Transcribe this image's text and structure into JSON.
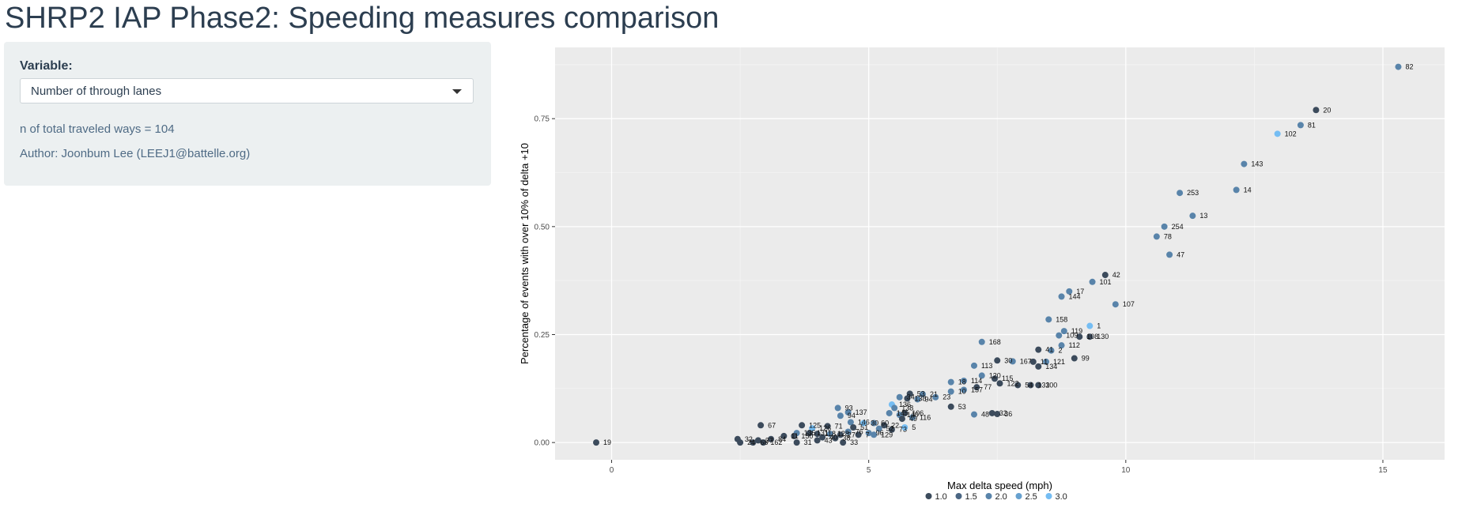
{
  "page_title": "SHRP2 IAP Phase2: Speeding measures comparison",
  "sidebar": {
    "variable_label": "Variable:",
    "variable_value": "Number of through lanes",
    "count_text": "n of total traveled ways = 104",
    "author_text": "Author: Joonbum Lee (LEEJ1@battelle.org)"
  },
  "colors": {
    "1.0": "#3c4b5c",
    "1.5": "#4b6683",
    "2.0": "#5984aa",
    "2.5": "#67a1cf",
    "3.0": "#75bdf3"
  },
  "icons": {
    "dropdown": "caret-down-icon"
  },
  "chart_data": {
    "type": "scatter",
    "xlabel": "Max delta speed (mph)",
    "ylabel": "Percentage of events with over 10% of delta +10",
    "xlim": [
      -1.1,
      16.2
    ],
    "ylim": [
      -0.04,
      0.915
    ],
    "xticks": [
      0,
      5,
      10,
      15
    ],
    "yticks": [
      0.0,
      0.25,
      0.5,
      0.75
    ],
    "ytick_labels": [
      "0.00",
      "0.25",
      "0.50",
      "0.75"
    ],
    "grid": true,
    "legend": {
      "placement": "bottom",
      "values": [
        1.0,
        1.5,
        2.0,
        2.5,
        3.0
      ],
      "labels": [
        "1.0",
        "1.5",
        "2.0",
        "2.5",
        "3.0"
      ]
    },
    "points": [
      {
        "x": 15.3,
        "y": 0.87,
        "label": "82",
        "lanes": 2.0
      },
      {
        "x": 13.7,
        "y": 0.77,
        "label": "20",
        "lanes": 1.0
      },
      {
        "x": 13.4,
        "y": 0.735,
        "label": "81",
        "lanes": 2.0
      },
      {
        "x": 12.95,
        "y": 0.715,
        "label": "102",
        "lanes": 3.0
      },
      {
        "x": 12.3,
        "y": 0.645,
        "label": "143",
        "lanes": 2.0
      },
      {
        "x": 12.15,
        "y": 0.585,
        "label": "14",
        "lanes": 2.0
      },
      {
        "x": 11.05,
        "y": 0.578,
        "label": "253",
        "lanes": 2.0
      },
      {
        "x": 11.3,
        "y": 0.525,
        "label": "13",
        "lanes": 2.0
      },
      {
        "x": 10.75,
        "y": 0.5,
        "label": "254",
        "lanes": 2.0
      },
      {
        "x": 10.6,
        "y": 0.477,
        "label": "78",
        "lanes": 2.0
      },
      {
        "x": 10.85,
        "y": 0.435,
        "label": "47",
        "lanes": 2.0
      },
      {
        "x": 9.6,
        "y": 0.388,
        "label": "42",
        "lanes": 1.0
      },
      {
        "x": 9.35,
        "y": 0.372,
        "label": "101",
        "lanes": 2.0
      },
      {
        "x": 8.9,
        "y": 0.35,
        "label": "17",
        "lanes": 2.0
      },
      {
        "x": 8.75,
        "y": 0.338,
        "label": "144",
        "lanes": 2.0
      },
      {
        "x": 9.8,
        "y": 0.32,
        "label": "107",
        "lanes": 2.0
      },
      {
        "x": 8.5,
        "y": 0.285,
        "label": "158",
        "lanes": 2.0
      },
      {
        "x": 9.3,
        "y": 0.27,
        "label": "1",
        "lanes": 3.0
      },
      {
        "x": 8.8,
        "y": 0.258,
        "label": "119",
        "lanes": 2.0
      },
      {
        "x": 8.7,
        "y": 0.248,
        "label": "109",
        "lanes": 2.0
      },
      {
        "x": 9.1,
        "y": 0.245,
        "label": "108",
        "lanes": 1.0
      },
      {
        "x": 9.3,
        "y": 0.245,
        "label": "130",
        "lanes": 1.0
      },
      {
        "x": 7.2,
        "y": 0.233,
        "label": "168",
        "lanes": 2.0
      },
      {
        "x": 8.75,
        "y": 0.225,
        "label": "112",
        "lanes": 2.0
      },
      {
        "x": 8.3,
        "y": 0.215,
        "label": "41",
        "lanes": 1.0
      },
      {
        "x": 8.55,
        "y": 0.213,
        "label": "2",
        "lanes": 2.0
      },
      {
        "x": 9.0,
        "y": 0.195,
        "label": "99",
        "lanes": 1.0
      },
      {
        "x": 7.5,
        "y": 0.19,
        "label": "30",
        "lanes": 1.0
      },
      {
        "x": 7.8,
        "y": 0.188,
        "label": "167",
        "lanes": 2.0
      },
      {
        "x": 8.2,
        "y": 0.187,
        "label": "11",
        "lanes": 1.0
      },
      {
        "x": 8.45,
        "y": 0.187,
        "label": "121",
        "lanes": 2.0
      },
      {
        "x": 7.05,
        "y": 0.178,
        "label": "113",
        "lanes": 2.0
      },
      {
        "x": 8.3,
        "y": 0.176,
        "label": "134",
        "lanes": 1.0
      },
      {
        "x": 7.2,
        "y": 0.155,
        "label": "120",
        "lanes": 2.0
      },
      {
        "x": 7.45,
        "y": 0.148,
        "label": "115",
        "lanes": 1.0
      },
      {
        "x": 6.85,
        "y": 0.143,
        "label": "114",
        "lanes": 2.0
      },
      {
        "x": 6.6,
        "y": 0.14,
        "label": "18",
        "lanes": 2.0
      },
      {
        "x": 7.55,
        "y": 0.137,
        "label": "122",
        "lanes": 1.0
      },
      {
        "x": 7.9,
        "y": 0.133,
        "label": "54",
        "lanes": 1.0
      },
      {
        "x": 8.15,
        "y": 0.133,
        "label": "133",
        "lanes": 1.0
      },
      {
        "x": 8.3,
        "y": 0.133,
        "label": "100",
        "lanes": 1.0
      },
      {
        "x": 7.1,
        "y": 0.128,
        "label": "77",
        "lanes": 1.0
      },
      {
        "x": 6.85,
        "y": 0.122,
        "label": "157",
        "lanes": 2.0
      },
      {
        "x": 6.6,
        "y": 0.118,
        "label": "10",
        "lanes": 2.0
      },
      {
        "x": 5.8,
        "y": 0.113,
        "label": "53",
        "lanes": 1.0
      },
      {
        "x": 6.05,
        "y": 0.112,
        "label": "21",
        "lanes": 2.0
      },
      {
        "x": 5.6,
        "y": 0.105,
        "label": "34",
        "lanes": 2.0
      },
      {
        "x": 6.3,
        "y": 0.105,
        "label": "23",
        "lanes": 2.0
      },
      {
        "x": 5.75,
        "y": 0.102,
        "label": "138",
        "lanes": 1.0
      },
      {
        "x": 5.95,
        "y": 0.1,
        "label": "94",
        "lanes": 2.0
      },
      {
        "x": 5.45,
        "y": 0.088,
        "label": "136",
        "lanes": 3.0
      },
      {
        "x": 6.6,
        "y": 0.083,
        "label": "53",
        "lanes": 1.0
      },
      {
        "x": 4.4,
        "y": 0.08,
        "label": "93",
        "lanes": 2.0
      },
      {
        "x": 5.5,
        "y": 0.08,
        "label": "138",
        "lanes": 2.0
      },
      {
        "x": 4.6,
        "y": 0.07,
        "label": "137",
        "lanes": 2.0
      },
      {
        "x": 5.4,
        "y": 0.068,
        "label": "145",
        "lanes": 2.0
      },
      {
        "x": 5.7,
        "y": 0.068,
        "label": "106",
        "lanes": 1.0
      },
      {
        "x": 5.6,
        "y": 0.064,
        "label": "140",
        "lanes": 2.0
      },
      {
        "x": 7.4,
        "y": 0.068,
        "label": "32",
        "lanes": 1.0
      },
      {
        "x": 7.05,
        "y": 0.065,
        "label": "48",
        "lanes": 2.0
      },
      {
        "x": 7.5,
        "y": 0.066,
        "label": "36",
        "lanes": 1.0
      },
      {
        "x": 4.45,
        "y": 0.062,
        "label": "94",
        "lanes": 2.0
      },
      {
        "x": 5.85,
        "y": 0.058,
        "label": "116",
        "lanes": 2.0
      },
      {
        "x": 5.65,
        "y": 0.055,
        "label": "49",
        "lanes": 1.0
      },
      {
        "x": 2.9,
        "y": 0.04,
        "label": "67",
        "lanes": 1.0
      },
      {
        "x": 3.7,
        "y": 0.04,
        "label": "125",
        "lanes": 1.0
      },
      {
        "x": 4.65,
        "y": 0.047,
        "label": "146",
        "lanes": 2.0
      },
      {
        "x": 4.9,
        "y": 0.045,
        "label": "30",
        "lanes": 3.0
      },
      {
        "x": 5.1,
        "y": 0.045,
        "label": "60",
        "lanes": 2.0
      },
      {
        "x": 4.2,
        "y": 0.038,
        "label": "71",
        "lanes": 1.0
      },
      {
        "x": 4.7,
        "y": 0.035,
        "label": "51",
        "lanes": 1.0
      },
      {
        "x": 5.2,
        "y": 0.032,
        "label": "52",
        "lanes": 2.0
      },
      {
        "x": 5.3,
        "y": 0.04,
        "label": "22",
        "lanes": 1.0
      },
      {
        "x": 5.7,
        "y": 0.035,
        "label": "5",
        "lanes": 3.0
      },
      {
        "x": 5.45,
        "y": 0.03,
        "label": "73",
        "lanes": 1.0
      },
      {
        "x": 3.9,
        "y": 0.033,
        "label": "126",
        "lanes": 3.0
      },
      {
        "x": 4.6,
        "y": 0.025,
        "label": "76",
        "lanes": 2.0
      },
      {
        "x": 5.0,
        "y": 0.022,
        "label": "96",
        "lanes": 2.0
      },
      {
        "x": 5.1,
        "y": 0.018,
        "label": "129",
        "lanes": 2.0
      },
      {
        "x": 3.6,
        "y": 0.022,
        "label": "135",
        "lanes": 2.0
      },
      {
        "x": 3.85,
        "y": 0.022,
        "label": "131",
        "lanes": 1.0
      },
      {
        "x": 4.0,
        "y": 0.02,
        "label": "118",
        "lanes": 1.0
      },
      {
        "x": 4.25,
        "y": 0.02,
        "label": "128",
        "lanes": 2.0
      },
      {
        "x": 4.45,
        "y": 0.018,
        "label": "27",
        "lanes": 1.0
      },
      {
        "x": 4.8,
        "y": 0.018,
        "label": "7",
        "lanes": 1.0
      },
      {
        "x": 3.35,
        "y": 0.015,
        "label": "11",
        "lanes": 1.0
      },
      {
        "x": 3.55,
        "y": 0.015,
        "label": "150",
        "lanes": 1.0
      },
      {
        "x": 4.1,
        "y": 0.012,
        "label": "40",
        "lanes": 1.0
      },
      {
        "x": 4.35,
        "y": 0.01,
        "label": "38",
        "lanes": 1.0
      },
      {
        "x": 2.45,
        "y": 0.008,
        "label": "32",
        "lanes": 1.0
      },
      {
        "x": 2.85,
        "y": 0.005,
        "label": "37",
        "lanes": 1.0
      },
      {
        "x": 3.1,
        "y": 0.008,
        "label": "84",
        "lanes": 1.0
      },
      {
        "x": 4.0,
        "y": 0.005,
        "label": "43",
        "lanes": 1.0
      },
      {
        "x": 2.5,
        "y": 0.0,
        "label": "24",
        "lanes": 1.0
      },
      {
        "x": 2.75,
        "y": 0.0,
        "label": "68",
        "lanes": 1.0
      },
      {
        "x": 2.95,
        "y": 0.0,
        "label": "162",
        "lanes": 1.0
      },
      {
        "x": 3.6,
        "y": 0.0,
        "label": "31",
        "lanes": 1.0
      },
      {
        "x": 4.5,
        "y": 0.0,
        "label": "33",
        "lanes": 1.0
      },
      {
        "x": -0.3,
        "y": 0.0,
        "label": "19",
        "lanes": 1.0
      }
    ]
  }
}
